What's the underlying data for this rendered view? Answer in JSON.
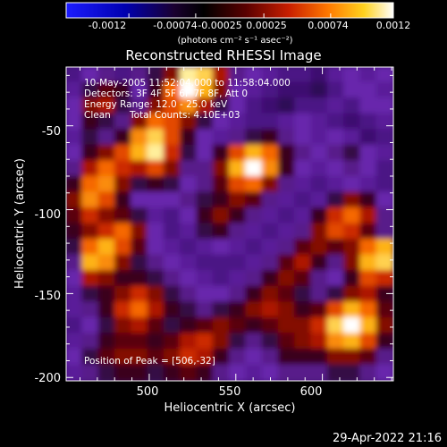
{
  "chart_data": {
    "type": "heatmap",
    "title": "Reconstructed RHESSI Image",
    "xlabel": "Heliocentric X (arcsec)",
    "ylabel": "Heliocentric Y (arcsec)",
    "xlim": [
      452,
      641
    ],
    "ylim": [
      -202,
      -15
    ],
    "x_ticks": [
      500,
      550,
      600
    ],
    "y_ticks": [
      -50,
      -100,
      -150,
      -200
    ],
    "colorbar": {
      "ticks": [
        "-0.0012",
        "-0.00074",
        "-0.00025",
        "0.00025",
        "0.00074",
        "0.0012"
      ],
      "range": [
        -0.0012,
        0.0012
      ],
      "unit_label": "(photons cm⁻² s⁻¹ asec⁻²)"
    },
    "annotations": {
      "time": "10-May-2005 11:52:04.000 to 11:58:04.000",
      "detectors": "Detectors: 3F 4F 5F 6F 7F 8F, Att 0",
      "energy": "Energy Range: 12.0 - 25.0 keV",
      "clean": "Clean",
      "counts": "Total Counts: 4.10E+03",
      "peak": "Position of Peak = [506,-32]"
    },
    "peak": [
      506,
      -32
    ],
    "grid_cols": 20,
    "grid_rows": 20,
    "values": [
      [
        0.2,
        0.3,
        0.35,
        0.2,
        0.35,
        0.4,
        0.55,
        0.95,
        0.9,
        0.6,
        0.35,
        0.3,
        0.25,
        0.2,
        0.2,
        0.15,
        0.25,
        0.3,
        0.25,
        0.3
      ],
      [
        0.25,
        0.4,
        0.5,
        0.45,
        0.3,
        0.45,
        0.75,
        1.0,
        0.85,
        0.55,
        0.3,
        0.25,
        0.2,
        0.15,
        0.15,
        0.1,
        0.2,
        0.3,
        0.3,
        0.25
      ],
      [
        0.3,
        0.55,
        0.6,
        0.4,
        0.35,
        0.55,
        0.7,
        0.8,
        0.6,
        0.4,
        0.3,
        0.2,
        0.15,
        0.1,
        0.2,
        0.2,
        0.25,
        0.2,
        0.3,
        0.3
      ],
      [
        0.3,
        0.45,
        0.4,
        0.35,
        0.55,
        0.75,
        0.7,
        0.55,
        0.4,
        0.3,
        0.25,
        0.2,
        0.2,
        0.25,
        0.3,
        0.25,
        0.2,
        0.15,
        0.2,
        0.25
      ],
      [
        0.25,
        0.4,
        0.35,
        0.45,
        0.8,
        0.9,
        0.7,
        0.45,
        0.3,
        0.25,
        0.35,
        0.4,
        0.45,
        0.35,
        0.3,
        0.25,
        0.3,
        0.25,
        0.15,
        0.2
      ],
      [
        0.3,
        0.45,
        0.55,
        0.7,
        0.85,
        0.95,
        0.65,
        0.4,
        0.3,
        0.45,
        0.7,
        0.85,
        0.75,
        0.45,
        0.35,
        0.3,
        0.35,
        0.4,
        0.3,
        0.25
      ],
      [
        0.35,
        0.6,
        0.75,
        0.65,
        0.6,
        0.7,
        0.55,
        0.35,
        0.35,
        0.55,
        0.85,
        1.0,
        0.8,
        0.45,
        0.3,
        0.25,
        0.3,
        0.35,
        0.3,
        0.2
      ],
      [
        0.45,
        0.75,
        0.8,
        0.55,
        0.4,
        0.45,
        0.4,
        0.3,
        0.35,
        0.5,
        0.7,
        0.75,
        0.55,
        0.35,
        0.25,
        0.2,
        0.25,
        0.3,
        0.25,
        0.2
      ],
      [
        0.55,
        0.8,
        0.7,
        0.45,
        0.3,
        0.3,
        0.3,
        0.35,
        0.4,
        0.45,
        0.55,
        0.5,
        0.35,
        0.25,
        0.2,
        0.25,
        0.4,
        0.55,
        0.45,
        0.3
      ],
      [
        0.5,
        0.65,
        0.55,
        0.5,
        0.4,
        0.25,
        0.2,
        0.3,
        0.45,
        0.55,
        0.45,
        0.35,
        0.25,
        0.2,
        0.25,
        0.45,
        0.65,
        0.75,
        0.6,
        0.35
      ],
      [
        0.45,
        0.55,
        0.65,
        0.75,
        0.55,
        0.3,
        0.2,
        0.25,
        0.4,
        0.45,
        0.35,
        0.25,
        0.2,
        0.25,
        0.35,
        0.55,
        0.7,
        0.65,
        0.5,
        0.35
      ],
      [
        0.4,
        0.75,
        0.85,
        0.7,
        0.5,
        0.3,
        0.25,
        0.2,
        0.25,
        0.3,
        0.25,
        0.2,
        0.25,
        0.35,
        0.5,
        0.55,
        0.5,
        0.55,
        0.75,
        0.85
      ],
      [
        0.35,
        0.85,
        0.8,
        0.55,
        0.4,
        0.35,
        0.3,
        0.25,
        0.2,
        0.2,
        0.2,
        0.25,
        0.35,
        0.5,
        0.6,
        0.45,
        0.35,
        0.55,
        0.85,
        0.9
      ],
      [
        0.3,
        0.6,
        0.55,
        0.45,
        0.45,
        0.4,
        0.35,
        0.3,
        0.25,
        0.2,
        0.25,
        0.35,
        0.45,
        0.55,
        0.5,
        0.35,
        0.3,
        0.45,
        0.7,
        0.65
      ],
      [
        0.25,
        0.4,
        0.45,
        0.55,
        0.65,
        0.55,
        0.4,
        0.35,
        0.3,
        0.3,
        0.35,
        0.45,
        0.55,
        0.5,
        0.4,
        0.35,
        0.4,
        0.55,
        0.6,
        0.45
      ],
      [
        0.25,
        0.35,
        0.45,
        0.65,
        0.75,
        0.6,
        0.45,
        0.4,
        0.35,
        0.4,
        0.45,
        0.55,
        0.6,
        0.55,
        0.45,
        0.5,
        0.7,
        0.85,
        0.75,
        0.5
      ],
      [
        0.2,
        0.3,
        0.4,
        0.55,
        0.6,
        0.5,
        0.4,
        0.45,
        0.5,
        0.55,
        0.5,
        0.45,
        0.5,
        0.55,
        0.55,
        0.65,
        0.9,
        1.0,
        0.85,
        0.55
      ],
      [
        0.25,
        0.35,
        0.45,
        0.5,
        0.5,
        0.45,
        0.5,
        0.6,
        0.65,
        0.55,
        0.4,
        0.35,
        0.4,
        0.5,
        0.55,
        0.6,
        0.8,
        0.85,
        0.7,
        0.45
      ],
      [
        0.3,
        0.4,
        0.5,
        0.55,
        0.55,
        0.5,
        0.55,
        0.65,
        0.6,
        0.45,
        0.35,
        0.3,
        0.35,
        0.45,
        0.45,
        0.45,
        0.55,
        0.55,
        0.5,
        0.35
      ],
      [
        0.25,
        0.35,
        0.4,
        0.45,
        0.45,
        0.4,
        0.45,
        0.5,
        0.45,
        0.35,
        0.3,
        0.25,
        0.3,
        0.35,
        0.35,
        0.35,
        0.4,
        0.4,
        0.35,
        0.3
      ]
    ]
  },
  "footer": {
    "timestamp": "29-Apr-2022 21:16"
  }
}
